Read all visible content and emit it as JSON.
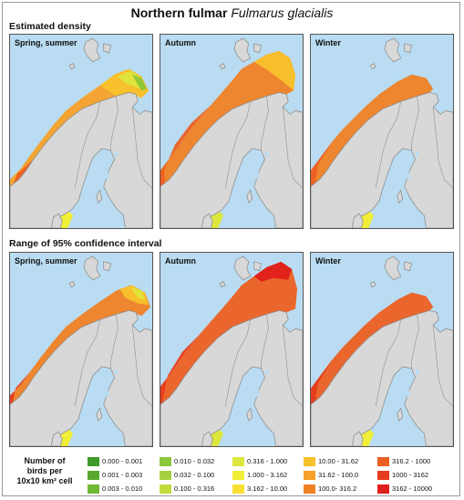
{
  "title": {
    "common_name": "Northern fulmar",
    "scientific_name": "Fulmarus glacialis"
  },
  "sections": [
    {
      "label": "Estimated density",
      "panels": [
        {
          "label": "Spring, summer",
          "season": "spring-summer"
        },
        {
          "label": "Autumn",
          "season": "autumn"
        },
        {
          "label": "Winter",
          "season": "winter"
        }
      ]
    },
    {
      "label": "Range of 95% confidence interval",
      "panels": [
        {
          "label": "Spring, summer",
          "season": "spring-summer"
        },
        {
          "label": "Autumn",
          "season": "autumn"
        },
        {
          "label": "Winter",
          "season": "winter"
        }
      ]
    }
  ],
  "legend": {
    "title_lines": [
      "Number of",
      "birds per",
      "10x10 km² cell"
    ],
    "classes": [
      {
        "label": "0.000 - 0.001",
        "color": "#3f9a2a"
      },
      {
        "label": "0.001 - 0.003",
        "color": "#58a92e"
      },
      {
        "label": "0.003 - 0.010",
        "color": "#72b834"
      },
      {
        "label": "0.010 - 0.032",
        "color": "#8cc63a"
      },
      {
        "label": "0.032 - 0.100",
        "color": "#a6d13f"
      },
      {
        "label": "0.100 - 0.316",
        "color": "#c2dc3f"
      },
      {
        "label": "0.316 - 1.000",
        "color": "#dde63c"
      },
      {
        "label": "1.000 - 3.162",
        "color": "#f1ee38"
      },
      {
        "label": "3.162 - 10.00",
        "color": "#f9e032"
      },
      {
        "label": "10.00 - 31.62",
        "color": "#f8c22c"
      },
      {
        "label": "31.62 - 100.0",
        "color": "#f5a028"
      },
      {
        "label": "100.0- 316.2",
        "color": "#f08024"
      },
      {
        "label": "316.2 - 1000",
        "color": "#ec5f22"
      },
      {
        "label": "1000 - 3162",
        "color": "#e73c1e"
      },
      {
        "label": "3162 - 10000",
        "color": "#e0201a"
      }
    ]
  },
  "colors": {
    "sea": "#b9dcf2",
    "land": "#d8d8d8",
    "land_border": "#8f8f8f"
  }
}
